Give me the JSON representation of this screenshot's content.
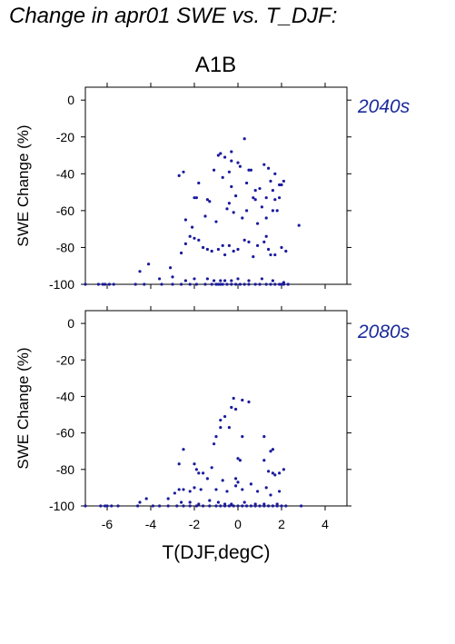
{
  "figure_title": "Change in apr01 SWE vs. T_DJF:",
  "scenario": "A1B",
  "colors": {
    "points": "#1a1a9e",
    "period_label": "#1a2a9c"
  },
  "chart_data": [
    {
      "type": "scatter",
      "period": "2040s",
      "xlabel": "",
      "ylabel": "SWE Change (%)",
      "xlim": [
        -7,
        5
      ],
      "ylim": [
        -100,
        7
      ],
      "y_ticks": [
        0,
        -20,
        -40,
        -60,
        -80,
        -100
      ],
      "x_ticks": [
        -6,
        -4,
        -2,
        0,
        2,
        4
      ],
      "show_x_tick_labels": false,
      "points": [
        [
          -7.0,
          -100
        ],
        [
          -6.4,
          -100
        ],
        [
          -6.2,
          -100
        ],
        [
          -6.1,
          -100
        ],
        [
          -5.9,
          -100
        ],
        [
          -5.7,
          -100
        ],
        [
          -4.7,
          -100
        ],
        [
          -4.3,
          -100
        ],
        [
          -3.5,
          -100
        ],
        [
          -3.0,
          -100
        ],
        [
          -2.6,
          -100
        ],
        [
          -2.2,
          -100
        ],
        [
          -1.9,
          -100
        ],
        [
          -1.5,
          -100
        ],
        [
          -1.2,
          -100
        ],
        [
          -1.0,
          -100
        ],
        [
          -0.9,
          -100
        ],
        [
          -0.8,
          -100
        ],
        [
          -0.7,
          -100
        ],
        [
          -0.5,
          -100
        ],
        [
          -0.3,
          -100
        ],
        [
          -0.1,
          -100
        ],
        [
          0.1,
          -100
        ],
        [
          0.3,
          -100
        ],
        [
          0.5,
          -100
        ],
        [
          0.8,
          -100
        ],
        [
          1.0,
          -100
        ],
        [
          1.3,
          -100
        ],
        [
          1.5,
          -100
        ],
        [
          1.7,
          -100
        ],
        [
          1.9,
          -100
        ],
        [
          2.0,
          -100
        ],
        [
          2.1,
          -100
        ],
        [
          2.3,
          -100
        ],
        [
          -4.5,
          -93
        ],
        [
          -4.1,
          -89
        ],
        [
          -3.6,
          -97
        ],
        [
          -3.1,
          -91
        ],
        [
          -3.0,
          -96
        ],
        [
          -2.4,
          -98
        ],
        [
          -2.0,
          -97
        ],
        [
          -1.4,
          -97
        ],
        [
          -1.1,
          -98
        ],
        [
          -0.8,
          -98
        ],
        [
          -0.6,
          -98
        ],
        [
          -0.3,
          -98
        ],
        [
          0.0,
          -97
        ],
        [
          0.5,
          -98
        ],
        [
          1.1,
          -97
        ],
        [
          1.6,
          -98
        ],
        [
          2.1,
          -99
        ],
        [
          -2.6,
          -83
        ],
        [
          -2.4,
          -78
        ],
        [
          -2.2,
          -74
        ],
        [
          -2.0,
          -75
        ],
        [
          -1.8,
          -76
        ],
        [
          -1.6,
          -80
        ],
        [
          -1.4,
          -81
        ],
        [
          -1.2,
          -82
        ],
        [
          -0.9,
          -81
        ],
        [
          -0.7,
          -79
        ],
        [
          -0.6,
          -84
        ],
        [
          -0.4,
          -79
        ],
        [
          -0.2,
          -82
        ],
        [
          0.0,
          -81
        ],
        [
          0.3,
          -76
        ],
        [
          0.5,
          -77
        ],
        [
          0.7,
          -85
        ],
        [
          0.9,
          -79
        ],
        [
          1.2,
          -77
        ],
        [
          1.3,
          -74
        ],
        [
          1.4,
          -81
        ],
        [
          1.5,
          -84
        ],
        [
          1.7,
          -84
        ],
        [
          2.0,
          -80
        ],
        [
          2.2,
          -82
        ],
        [
          2.8,
          -68
        ],
        [
          -2.4,
          -65
        ],
        [
          -2.1,
          -69
        ],
        [
          -1.5,
          -63
        ],
        [
          -1.0,
          -66
        ],
        [
          -0.5,
          -59
        ],
        [
          -0.4,
          -56
        ],
        [
          -0.2,
          -61
        ],
        [
          0.2,
          -64
        ],
        [
          0.4,
          -60
        ],
        [
          0.7,
          -53
        ],
        [
          0.9,
          -67
        ],
        [
          1.1,
          -58
        ],
        [
          1.3,
          -64
        ],
        [
          1.6,
          -60
        ],
        [
          1.8,
          -60
        ],
        [
          -2.7,
          -41
        ],
        [
          -2.5,
          -39
        ],
        [
          -2.0,
          -53
        ],
        [
          -1.9,
          -53
        ],
        [
          -1.8,
          -45
        ],
        [
          -1.4,
          -54
        ],
        [
          -1.3,
          -55
        ],
        [
          -1.1,
          -38
        ],
        [
          -0.9,
          -30
        ],
        [
          -0.8,
          -29
        ],
        [
          -0.7,
          -42
        ],
        [
          -0.6,
          -31
        ],
        [
          -0.4,
          -39
        ],
        [
          -0.3,
          -47
        ],
        [
          -0.3,
          -33
        ],
        [
          -0.3,
          -28
        ],
        [
          -0.1,
          -52
        ],
        [
          0.0,
          -34
        ],
        [
          0.1,
          -36
        ],
        [
          0.3,
          -21
        ],
        [
          0.4,
          -45
        ],
        [
          0.5,
          -38
        ],
        [
          0.6,
          -38
        ],
        [
          0.8,
          -49
        ],
        [
          0.8,
          -54
        ],
        [
          1.0,
          -48
        ],
        [
          1.2,
          -35
        ],
        [
          1.4,
          -37
        ],
        [
          1.5,
          -44
        ],
        [
          1.6,
          -49
        ],
        [
          1.7,
          -54
        ],
        [
          1.7,
          -40
        ],
        [
          1.9,
          -53
        ],
        [
          1.9,
          -46
        ],
        [
          2.0,
          -46
        ],
        [
          2.1,
          -44
        ],
        [
          1.3,
          -53
        ]
      ]
    },
    {
      "type": "scatter",
      "period": "2080s",
      "xlabel": "T(DJF,degC)",
      "ylabel": "SWE Change (%)",
      "xlim": [
        -7,
        5
      ],
      "ylim": [
        -100,
        7
      ],
      "y_ticks": [
        0,
        -20,
        -40,
        -60,
        -80,
        -100
      ],
      "x_ticks": [
        -6,
        -4,
        -2,
        0,
        2,
        4
      ],
      "show_x_tick_labels": true,
      "points": [
        [
          -7.0,
          -100
        ],
        [
          -6.3,
          -100
        ],
        [
          -6.1,
          -100
        ],
        [
          -6.0,
          -100
        ],
        [
          -5.8,
          -100
        ],
        [
          -5.5,
          -100
        ],
        [
          -4.6,
          -100
        ],
        [
          -3.9,
          -100
        ],
        [
          -3.6,
          -100
        ],
        [
          -3.2,
          -100
        ],
        [
          -2.8,
          -100
        ],
        [
          -2.5,
          -100
        ],
        [
          -2.2,
          -100
        ],
        [
          -1.9,
          -100
        ],
        [
          -1.6,
          -100
        ],
        [
          -1.3,
          -100
        ],
        [
          -1.0,
          -100
        ],
        [
          -0.8,
          -100
        ],
        [
          -0.6,
          -100
        ],
        [
          -0.4,
          -100
        ],
        [
          -0.2,
          -100
        ],
        [
          0.0,
          -100
        ],
        [
          0.2,
          -100
        ],
        [
          0.4,
          -100
        ],
        [
          0.6,
          -100
        ],
        [
          0.8,
          -100
        ],
        [
          1.0,
          -100
        ],
        [
          1.2,
          -100
        ],
        [
          1.4,
          -100
        ],
        [
          1.6,
          -100
        ],
        [
          1.8,
          -100
        ],
        [
          2.0,
          -100
        ],
        [
          2.2,
          -100
        ],
        [
          2.9,
          -100
        ],
        [
          -4.5,
          -98
        ],
        [
          -4.2,
          -96
        ],
        [
          -3.2,
          -96
        ],
        [
          -2.9,
          -93
        ],
        [
          -2.6,
          -98
        ],
        [
          -2.2,
          -98
        ],
        [
          -1.8,
          -99
        ],
        [
          -1.3,
          -97
        ],
        [
          -0.9,
          -98
        ],
        [
          -0.6,
          -99
        ],
        [
          -0.3,
          -99
        ],
        [
          0.3,
          -98
        ],
        [
          0.8,
          -99
        ],
        [
          1.2,
          -99
        ],
        [
          1.8,
          -99
        ],
        [
          -2.7,
          -91
        ],
        [
          -2.5,
          -91
        ],
        [
          -2.2,
          -92
        ],
        [
          -2.0,
          -90
        ],
        [
          -1.7,
          -91
        ],
        [
          -1.4,
          -85
        ],
        [
          -1.0,
          -91
        ],
        [
          -0.7,
          -86
        ],
        [
          -0.5,
          -92
        ],
        [
          -0.1,
          -89
        ],
        [
          0.2,
          -91
        ],
        [
          0.6,
          -88
        ],
        [
          0.9,
          -92
        ],
        [
          1.3,
          -90
        ],
        [
          1.5,
          -94
        ],
        [
          1.9,
          -92
        ],
        [
          -2.7,
          -77
        ],
        [
          -2.5,
          -69
        ],
        [
          -2.0,
          -77
        ],
        [
          -1.9,
          -80
        ],
        [
          -1.8,
          -82
        ],
        [
          -1.6,
          -82
        ],
        [
          -1.2,
          -79
        ],
        [
          0.0,
          -74
        ],
        [
          -0.1,
          -85
        ],
        [
          0.0,
          -87
        ],
        [
          1.2,
          -75
        ],
        [
          1.4,
          -81
        ],
        [
          1.6,
          -82
        ],
        [
          1.7,
          -83
        ],
        [
          1.9,
          -82
        ],
        [
          2.1,
          -80
        ],
        [
          1.5,
          -70
        ],
        [
          1.6,
          -69
        ],
        [
          -1.1,
          -66
        ],
        [
          -1.0,
          -62
        ],
        [
          -0.8,
          -57
        ],
        [
          -0.8,
          -53
        ],
        [
          -0.6,
          -51
        ],
        [
          -0.4,
          -57
        ],
        [
          -0.3,
          -46
        ],
        [
          -0.2,
          -41
        ],
        [
          -0.1,
          -47
        ],
        [
          0.2,
          -62
        ],
        [
          0.2,
          -42
        ],
        [
          0.5,
          -43
        ],
        [
          1.2,
          -62
        ],
        [
          0.1,
          -75
        ]
      ]
    }
  ]
}
